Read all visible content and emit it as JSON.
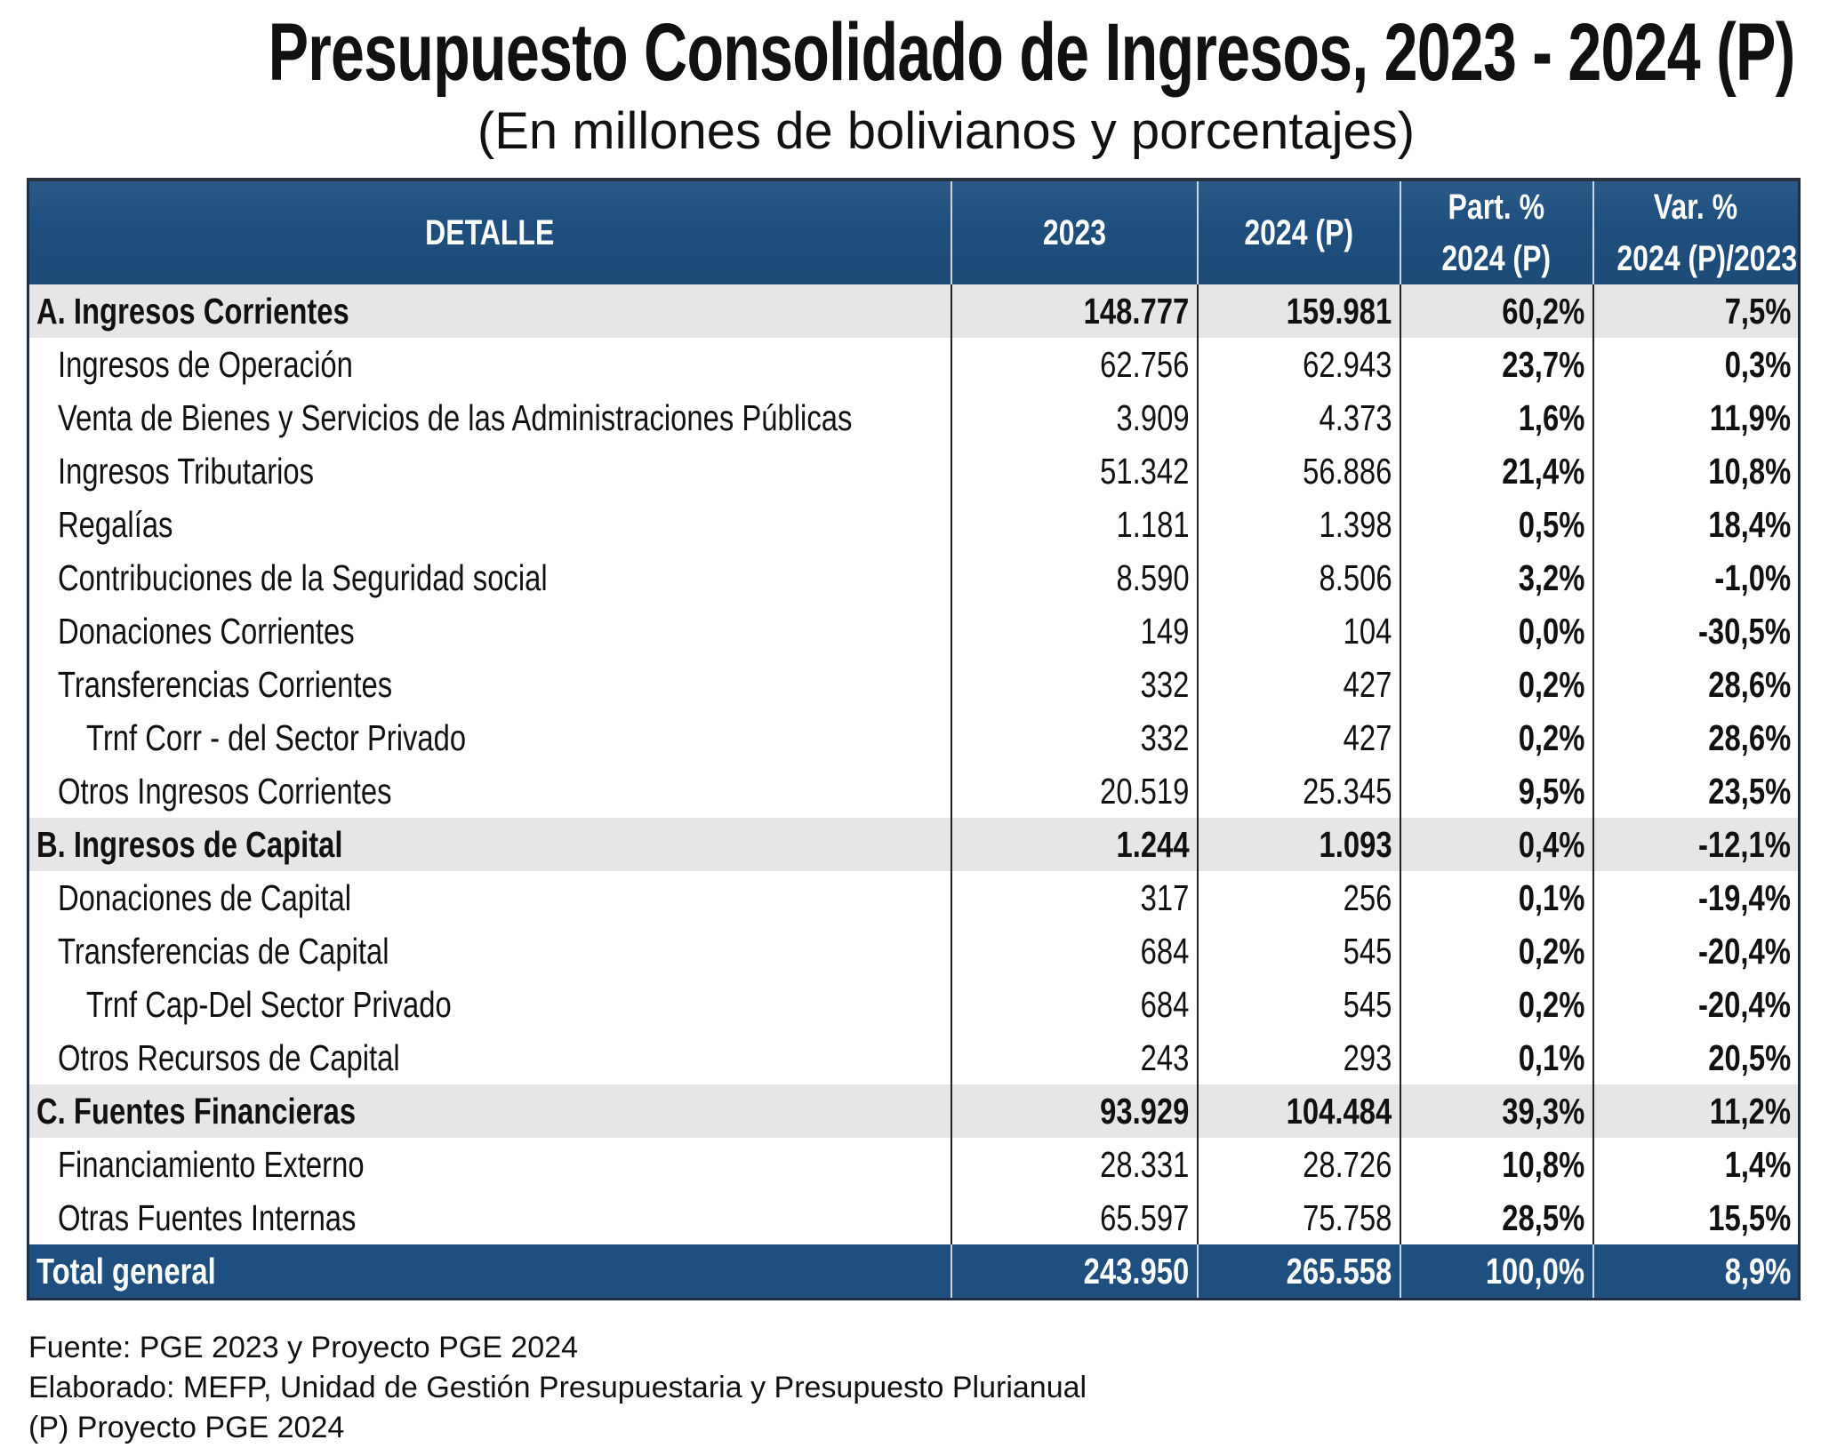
{
  "title": "Presupuesto Consolidado de Ingresos, 2023 - 2024 (P)",
  "subtitle": "(En millones de bolivianos y porcentajes)",
  "colors": {
    "header": "#1f4f7e",
    "section_bg": "#e6e6e6"
  },
  "table": {
    "headers": [
      "DETALLE",
      "2023",
      "2024 (P)",
      "Part. % 2024 (P)",
      "Var. % 2024 (P)/2023"
    ],
    "header_lines": [
      [
        "DETALLE"
      ],
      [
        "2023"
      ],
      [
        "2024 (P)"
      ],
      [
        "Part. %",
        "2024 (P)"
      ],
      [
        "Var. %",
        "2024 (P)/2023"
      ]
    ],
    "rows": [
      {
        "type": "section",
        "label": "A. Ingresos Corrientes",
        "y2023": "148.777",
        "y2024": "159.981",
        "part": "60,2%",
        "var": "7,5%"
      },
      {
        "type": "item",
        "label": "Ingresos de Operación",
        "y2023": "62.756",
        "y2024": "62.943",
        "part": "23,7%",
        "var": "0,3%"
      },
      {
        "type": "item",
        "label": "Venta de Bienes y Servicios de las Administraciones Públicas",
        "y2023": "3.909",
        "y2024": "4.373",
        "part": "1,6%",
        "var": "11,9%"
      },
      {
        "type": "item",
        "label": "Ingresos Tributarios",
        "y2023": "51.342",
        "y2024": "56.886",
        "part": "21,4%",
        "var": "10,8%"
      },
      {
        "type": "item",
        "label": "Regalías",
        "y2023": "1.181",
        "y2024": "1.398",
        "part": "0,5%",
        "var": "18,4%"
      },
      {
        "type": "item",
        "label": "Contribuciones de la Seguridad social",
        "y2023": "8.590",
        "y2024": "8.506",
        "part": "3,2%",
        "var": "-1,0%"
      },
      {
        "type": "item",
        "label": "Donaciones Corrientes",
        "y2023": "149",
        "y2024": "104",
        "part": "0,0%",
        "var": "-30,5%"
      },
      {
        "type": "item",
        "label": "Transferencias Corrientes",
        "y2023": "332",
        "y2024": "427",
        "part": "0,2%",
        "var": "28,6%"
      },
      {
        "type": "sub",
        "label": "Trnf Corr - del Sector Privado",
        "y2023": "332",
        "y2024": "427",
        "part": "0,2%",
        "var": "28,6%"
      },
      {
        "type": "item",
        "label": "Otros Ingresos Corrientes",
        "y2023": "20.519",
        "y2024": "25.345",
        "part": "9,5%",
        "var": "23,5%"
      },
      {
        "type": "section",
        "label": "B. Ingresos de Capital",
        "y2023": "1.244",
        "y2024": "1.093",
        "part": "0,4%",
        "var": "-12,1%"
      },
      {
        "type": "item",
        "label": "Donaciones de Capital",
        "y2023": "317",
        "y2024": "256",
        "part": "0,1%",
        "var": "-19,4%"
      },
      {
        "type": "item",
        "label": "Transferencias de Capital",
        "y2023": "684",
        "y2024": "545",
        "part": "0,2%",
        "var": "-20,4%"
      },
      {
        "type": "sub",
        "label": "Trnf Cap-Del Sector Privado",
        "y2023": "684",
        "y2024": "545",
        "part": "0,2%",
        "var": "-20,4%"
      },
      {
        "type": "item",
        "label": "Otros Recursos de Capital",
        "y2023": "243",
        "y2024": "293",
        "part": "0,1%",
        "var": "20,5%"
      },
      {
        "type": "section",
        "label": "C. Fuentes Financieras",
        "y2023": "93.929",
        "y2024": "104.484",
        "part": "39,3%",
        "var": "11,2%"
      },
      {
        "type": "item",
        "label": "Financiamiento Externo",
        "y2023": "28.331",
        "y2024": "28.726",
        "part": "10,8%",
        "var": "1,4%"
      },
      {
        "type": "item",
        "label": "Otras Fuentes Internas",
        "y2023": "65.597",
        "y2024": "75.758",
        "part": "28,5%",
        "var": "15,5%"
      }
    ],
    "total": {
      "label": "Total general",
      "y2023": "243.950",
      "y2024": "265.558",
      "part": "100,0%",
      "var": "8,9%"
    }
  },
  "footer": [
    "Fuente: PGE 2023 y Proyecto PGE 2024",
    "Elaborado: MEFP, Unidad de Gestión Presupuestaria y Presupuesto Plurianual",
    "(P) Proyecto PGE 2024"
  ]
}
